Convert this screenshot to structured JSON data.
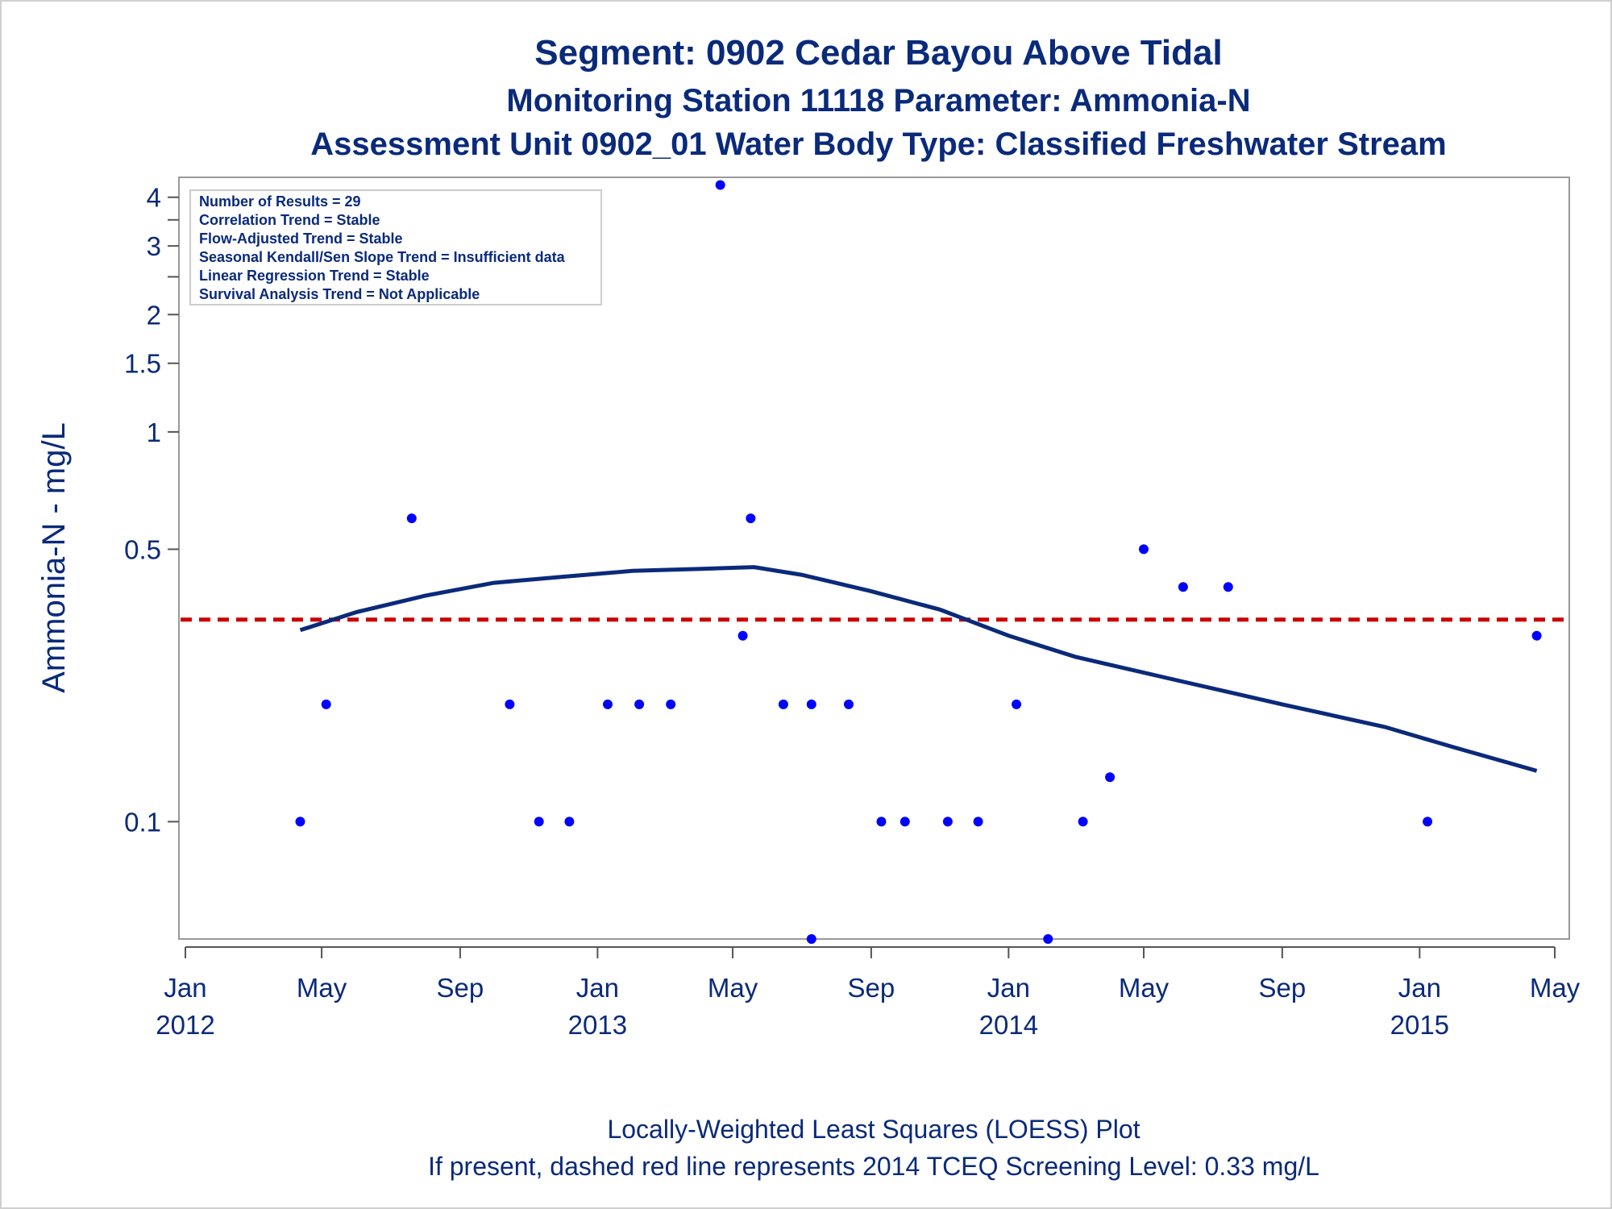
{
  "titles": {
    "line1": "Segment: 0902  Cedar Bayou Above Tidal",
    "line2": "Monitoring Station 11118 Parameter: Ammonia-N",
    "line3": "Assessment Unit 0902_01   Water Body Type: Classified Freshwater Stream"
  },
  "stats": [
    "Number of Results = 29",
    "Correlation Trend = Stable",
    "Flow-Adjusted Trend = Stable",
    "Seasonal Kendall/Sen Slope Trend = Insufficient data",
    "Linear Regression Trend = Stable",
    "Survival Analysis Trend = Not Applicable"
  ],
  "footer": {
    "line1": "Locally-Weighted Least Squares (LOESS) Plot",
    "line2": "If present, dashed red line represents 2014 TCEQ Screening Level: 0.33 mg/L"
  },
  "chart_data": {
    "type": "scatter",
    "ylabel": "Ammonia-N - mg/L",
    "yscale": "log",
    "xlim": [
      "2012-01-01",
      "2015-05-01"
    ],
    "ylim": [
      0.05,
      4.5
    ],
    "y_ticks": [
      {
        "value": 0.1,
        "label": "0.1"
      },
      {
        "value": 0.5,
        "label": "0.5"
      },
      {
        "value": 1,
        "label": "1"
      },
      {
        "value": 1.5,
        "label": "1.5"
      },
      {
        "value": 2,
        "label": "2"
      },
      {
        "value": 3,
        "label": "3"
      },
      {
        "value": 4,
        "label": "4"
      }
    ],
    "y_minor_ticks": [
      2.5,
      3.5
    ],
    "x_ticks": [
      {
        "date": "2012-01-01",
        "label": "Jan",
        "label2": "2012"
      },
      {
        "date": "2012-05-01",
        "label": "May",
        "label2": ""
      },
      {
        "date": "2012-09-01",
        "label": "Sep",
        "label2": ""
      },
      {
        "date": "2013-01-01",
        "label": "Jan",
        "label2": "2013"
      },
      {
        "date": "2013-05-01",
        "label": "May",
        "label2": ""
      },
      {
        "date": "2013-09-01",
        "label": "Sep",
        "label2": ""
      },
      {
        "date": "2014-01-01",
        "label": "Jan",
        "label2": "2014"
      },
      {
        "date": "2014-05-01",
        "label": "May",
        "label2": ""
      },
      {
        "date": "2014-09-01",
        "label": "Sep",
        "label2": ""
      },
      {
        "date": "2015-01-01",
        "label": "Jan",
        "label2": "2015"
      },
      {
        "date": "2015-05-01",
        "label": "May",
        "label2": ""
      }
    ],
    "screening_level": 0.33,
    "point_color": "#0000ff",
    "loess_color": "#0a2a7a",
    "screening_color": "#cc0000",
    "points": [
      {
        "date": "2012-04-12",
        "value": 0.1
      },
      {
        "date": "2012-05-05",
        "value": 0.2
      },
      {
        "date": "2012-07-20",
        "value": 0.6
      },
      {
        "date": "2012-10-15",
        "value": 0.2
      },
      {
        "date": "2012-11-10",
        "value": 0.1
      },
      {
        "date": "2012-12-07",
        "value": 0.1
      },
      {
        "date": "2013-01-10",
        "value": 0.2
      },
      {
        "date": "2013-02-07",
        "value": 0.2
      },
      {
        "date": "2013-03-07",
        "value": 0.2
      },
      {
        "date": "2013-04-20",
        "value": 4.3
      },
      {
        "date": "2013-05-10",
        "value": 0.3
      },
      {
        "date": "2013-05-17",
        "value": 0.6
      },
      {
        "date": "2013-06-15",
        "value": 0.2
      },
      {
        "date": "2013-07-10",
        "value": 0.2
      },
      {
        "date": "2013-07-10",
        "value": 0.05
      },
      {
        "date": "2013-08-12",
        "value": 0.2
      },
      {
        "date": "2013-09-10",
        "value": 0.1
      },
      {
        "date": "2013-10-01",
        "value": 0.1
      },
      {
        "date": "2013-11-08",
        "value": 0.1
      },
      {
        "date": "2013-12-05",
        "value": 0.1
      },
      {
        "date": "2014-01-08",
        "value": 0.2
      },
      {
        "date": "2014-02-05",
        "value": 0.05
      },
      {
        "date": "2014-03-08",
        "value": 0.1
      },
      {
        "date": "2014-04-01",
        "value": 0.13
      },
      {
        "date": "2014-05-01",
        "value": 0.5
      },
      {
        "date": "2014-06-05",
        "value": 0.4
      },
      {
        "date": "2014-07-15",
        "value": 0.4
      },
      {
        "date": "2015-01-08",
        "value": 0.1
      },
      {
        "date": "2015-04-15",
        "value": 0.3
      }
    ],
    "loess": [
      {
        "date": "2012-04-12",
        "value": 0.31
      },
      {
        "date": "2012-06-01",
        "value": 0.345
      },
      {
        "date": "2012-08-01",
        "value": 0.38
      },
      {
        "date": "2012-10-01",
        "value": 0.41
      },
      {
        "date": "2012-12-01",
        "value": 0.425
      },
      {
        "date": "2013-02-01",
        "value": 0.44
      },
      {
        "date": "2013-04-01",
        "value": 0.445
      },
      {
        "date": "2013-05-20",
        "value": 0.45
      },
      {
        "date": "2013-07-01",
        "value": 0.43
      },
      {
        "date": "2013-09-01",
        "value": 0.39
      },
      {
        "date": "2013-11-01",
        "value": 0.35
      },
      {
        "date": "2014-01-01",
        "value": 0.3
      },
      {
        "date": "2014-03-01",
        "value": 0.265
      },
      {
        "date": "2014-06-01",
        "value": 0.23
      },
      {
        "date": "2014-09-01",
        "value": 0.2
      },
      {
        "date": "2014-12-01",
        "value": 0.175
      },
      {
        "date": "2015-02-01",
        "value": 0.155
      },
      {
        "date": "2015-04-15",
        "value": 0.135
      }
    ]
  }
}
